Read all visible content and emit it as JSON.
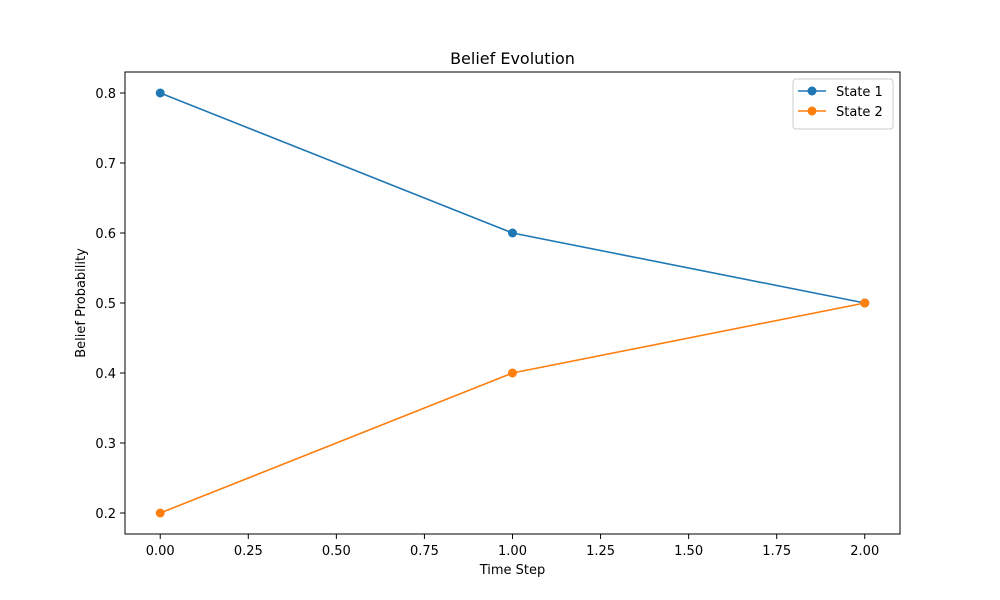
{
  "chart_data": {
    "type": "line",
    "title": "Belief Evolution",
    "xlabel": "Time Step",
    "ylabel": "Belief Probability",
    "xlim": [
      -0.1,
      2.1
    ],
    "ylim": [
      0.17,
      0.83
    ],
    "xticks": [
      0.0,
      0.25,
      0.5,
      0.75,
      1.0,
      1.25,
      1.5,
      1.75,
      2.0
    ],
    "xtick_labels": [
      "0.00",
      "0.25",
      "0.50",
      "0.75",
      "1.00",
      "1.25",
      "1.50",
      "1.75",
      "2.00"
    ],
    "yticks": [
      0.2,
      0.3,
      0.4,
      0.5,
      0.6,
      0.7,
      0.8
    ],
    "ytick_labels": [
      "0.2",
      "0.3",
      "0.4",
      "0.5",
      "0.6",
      "0.7",
      "0.8"
    ],
    "x": [
      0,
      1,
      2
    ],
    "series": [
      {
        "name": "State 1",
        "values": [
          0.8,
          0.6,
          0.5
        ],
        "color": "#1f77b4",
        "marker": "circle"
      },
      {
        "name": "State 2",
        "values": [
          0.2,
          0.4,
          0.5
        ],
        "color": "#ff7f0e",
        "marker": "circle"
      }
    ],
    "grid": false,
    "legend": {
      "placement": "top-right"
    }
  }
}
